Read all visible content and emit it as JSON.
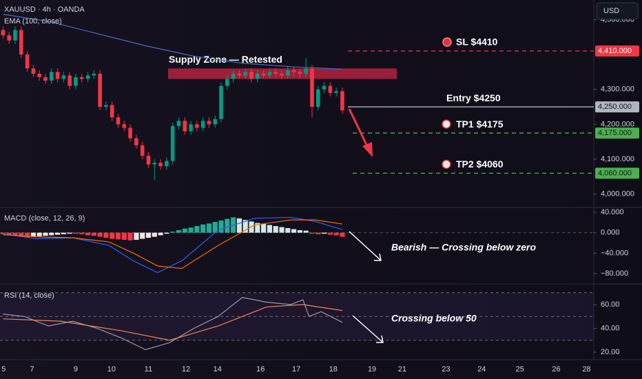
{
  "chart_data": [
    {
      "type": "candlestick",
      "title": "XAUUSD · 4h · OANDA",
      "currency": "USD",
      "candles": {
        "open": [
          4470,
          4455,
          4440,
          4470,
          4400,
          4360,
          4345,
          4335,
          4325,
          4350,
          4330,
          4340,
          4310,
          4335,
          4330,
          4340,
          4345,
          4250,
          4255,
          4220,
          4200,
          4190,
          4160,
          4140,
          4110,
          4085,
          4090,
          4080,
          4095,
          4195,
          4210,
          4180,
          4200,
          4190,
          4210,
          4200,
          4215,
          4310,
          4330,
          4345,
          4340,
          4350,
          4330,
          4345,
          4340,
          4350,
          4345,
          4340,
          4355,
          4350,
          4345,
          4360,
          4250,
          4300,
          4310,
          4290,
          4295
        ],
        "high": [
          4480,
          4465,
          4480,
          4480,
          4410,
          4370,
          4355,
          4345,
          4360,
          4360,
          4350,
          4350,
          4345,
          4345,
          4350,
          4355,
          4355,
          4265,
          4265,
          4230,
          4210,
          4200,
          4170,
          4150,
          4120,
          4100,
          4100,
          4105,
          4205,
          4220,
          4220,
          4210,
          4210,
          4220,
          4220,
          4225,
          4320,
          4340,
          4355,
          4355,
          4360,
          4360,
          4355,
          4355,
          4360,
          4360,
          4355,
          4365,
          4365,
          4360,
          4390,
          4370,
          4310,
          4320,
          4320,
          4305,
          4305
        ],
        "low": [
          4445,
          4430,
          4430,
          4390,
          4350,
          4335,
          4325,
          4315,
          4315,
          4320,
          4320,
          4300,
          4300,
          4320,
          4320,
          4330,
          4240,
          4240,
          4210,
          4190,
          4180,
          4150,
          4130,
          4100,
          4075,
          4040,
          4070,
          4070,
          4085,
          4185,
          4170,
          4170,
          4180,
          4180,
          4190,
          4190,
          4205,
          4300,
          4320,
          4330,
          4330,
          4320,
          4320,
          4330,
          4330,
          4335,
          4330,
          4330,
          4340,
          4335,
          4335,
          4220,
          4240,
          4290,
          4280,
          4280,
          4230
        ],
        "close": [
          4455,
          4440,
          4470,
          4400,
          4360,
          4345,
          4335,
          4325,
          4350,
          4330,
          4340,
          4310,
          4335,
          4330,
          4340,
          4345,
          4250,
          4255,
          4220,
          4200,
          4190,
          4160,
          4140,
          4110,
          4085,
          4090,
          4080,
          4095,
          4195,
          4210,
          4180,
          4200,
          4190,
          4210,
          4200,
          4215,
          4310,
          4330,
          4345,
          4340,
          4350,
          4330,
          4345,
          4340,
          4350,
          4345,
          4340,
          4355,
          4350,
          4345,
          4360,
          4250,
          4300,
          4310,
          4290,
          4295,
          4240
        ]
      },
      "up_color": "#089981",
      "down_color": "#f23645",
      "overlay": {
        "name": "EMA (100, close)",
        "color": "#4a6fc9",
        "x": [
          0.5,
          8,
          16,
          24,
          32,
          40,
          48,
          56.5
        ],
        "values": [
          4515,
          4495,
          4460,
          4425,
          4395,
          4375,
          4365,
          4358
        ]
      },
      "zone": {
        "label": "Supply Zone — Retested",
        "low": 4330,
        "high": 4360,
        "color": "#b3233f"
      },
      "levels": [
        {
          "label": "SL $4410",
          "value": 4410,
          "tag": "4,410.000",
          "color": "#f23645",
          "dash": true,
          "tag_text": "#ffffff"
        },
        {
          "label": "Entry $4250",
          "value": 4250,
          "tag": "4,250.000",
          "color": "#b2b5be",
          "dash": false,
          "tag_text": "#131722"
        },
        {
          "label": "TP1 $4175",
          "value": 4175,
          "tag": "4,175.000",
          "color": "#4caf50",
          "dash": true,
          "tag_text": "#131722"
        },
        {
          "label": "TP2 $4060",
          "value": 4060,
          "tag": "4,060.000",
          "color": "#4caf50",
          "dash": true,
          "tag_text": "#131722"
        }
      ],
      "xlim": [
        0,
        98
      ],
      "xticks": [
        {
          "value": 0.6,
          "label": "5"
        },
        {
          "value": 5.3,
          "label": "7"
        },
        {
          "value": 12.5,
          "label": "9"
        },
        {
          "value": 18.4,
          "label": "10"
        },
        {
          "value": 24.5,
          "label": "11"
        },
        {
          "value": 30.7,
          "label": "12"
        },
        {
          "value": 35.9,
          "label": "14"
        },
        {
          "value": 43,
          "label": "16"
        },
        {
          "value": 48.9,
          "label": "17"
        },
        {
          "value": 55,
          "label": "18"
        },
        {
          "value": 61.4,
          "label": "19"
        },
        {
          "value": 66.4,
          "label": "21"
        },
        {
          "value": 73.6,
          "label": "23"
        },
        {
          "value": 79.5,
          "label": "24"
        },
        {
          "value": 85.8,
          "label": "25"
        },
        {
          "value": 91.8,
          "label": "26"
        },
        {
          "value": 96.8,
          "label": "28"
        }
      ],
      "ylim": [
        3964,
        4556
      ],
      "yticks": [
        {
          "value": 4000,
          "label": "4,000.000"
        },
        {
          "value": 4100,
          "label": "4,100.000"
        },
        {
          "value": 4200,
          "label": "4,200.000"
        },
        {
          "value": 4300,
          "label": "4,300.000"
        },
        {
          "value": 4500,
          "label": "4,500.000"
        }
      ]
    },
    {
      "type": "macd",
      "title": "MACD (close, 12, 26, 9)",
      "histogram": {
        "values": [
          -3,
          -5,
          -6,
          -8,
          -9,
          -8,
          -7,
          -6,
          -5,
          -4,
          -3,
          -2,
          -2,
          -3,
          -5,
          -6,
          -8,
          -10,
          -12,
          -13,
          -14,
          -15,
          -14,
          -12,
          -10,
          -8,
          -5,
          -2,
          2,
          5,
          8,
          10,
          13,
          16,
          18,
          21,
          24,
          27,
          30,
          28,
          25,
          22,
          19,
          17,
          15,
          13,
          11,
          9,
          7,
          5,
          4,
          -2,
          -3,
          -2,
          -4,
          -5,
          -8
        ],
        "colors": {
          "grow_pos": "#22ab94",
          "fall_pos": "#cfe9e4",
          "grow_neg": "#f23645",
          "fall_neg": "#f3e4e6"
        }
      },
      "series": [
        {
          "color": "#2962ff",
          "x": [
            0.5,
            6,
            12,
            18,
            22,
            26,
            30,
            36,
            42,
            48,
            52,
            56.5
          ],
          "values": [
            -2,
            -12,
            -10,
            -25,
            -55,
            -78,
            -55,
            5,
            28,
            30,
            22,
            6
          ]
        },
        {
          "color": "#ff6d00",
          "x": [
            0.5,
            6,
            12,
            18,
            22,
            26,
            30,
            36,
            42,
            48,
            52,
            56.5
          ],
          "values": [
            -4,
            -8,
            -10,
            -18,
            -40,
            -65,
            -70,
            -25,
            15,
            25,
            25,
            17
          ]
        }
      ],
      "annotation": "Bearish — Crossing below zero",
      "ylim": [
        -97.5,
        48.1
      ],
      "yticks": [
        {
          "value": 40,
          "label": "40.000"
        },
        {
          "value": 0,
          "label": "0.000"
        },
        {
          "value": -40,
          "label": "−40.000"
        },
        {
          "value": -80,
          "label": "−80.000"
        }
      ]
    },
    {
      "type": "line",
      "title": "RSI (14, close)",
      "series": [
        {
          "color": "#9a9aa6",
          "x": [
            0.5,
            4,
            8,
            12,
            16,
            20,
            24,
            28,
            32,
            36,
            40,
            44,
            48,
            50,
            51,
            53,
            56.5
          ],
          "values": [
            52,
            50,
            42,
            46,
            40,
            32,
            22,
            28,
            40,
            50,
            66,
            62,
            60,
            64,
            50,
            54,
            45
          ]
        },
        {
          "color": "#f7845a",
          "x": [
            0.5,
            10,
            20,
            28,
            36,
            44,
            50,
            56.5
          ],
          "values": [
            48,
            46,
            38,
            30,
            42,
            58,
            60,
            55
          ]
        }
      ],
      "bands": [
        70,
        50,
        30
      ],
      "annotation": "Crossing below 50",
      "ylim": [
        13.6,
        76.8
      ],
      "yticks": [
        {
          "value": 60,
          "label": "60.00"
        },
        {
          "value": 40,
          "label": "40.00"
        },
        {
          "value": 20,
          "label": "20.00"
        }
      ]
    }
  ]
}
